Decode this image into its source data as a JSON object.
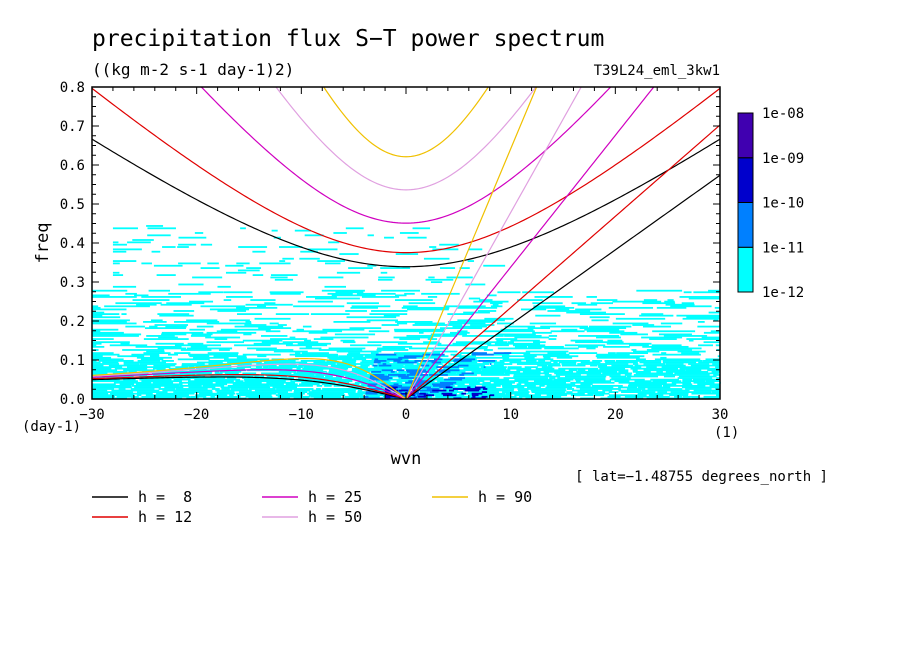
{
  "chart_data": {
    "type": "heatmap",
    "title": "precipitation flux S−T power spectrum",
    "subtitle": "((kg m-2 s-1 day-1)2)",
    "run_label": "T39L24_eml_3kw1",
    "xlabel": "wvn",
    "ylabel": "freq",
    "x_unit_label": "(1)",
    "y_unit_label": "(day-1)",
    "latitude_note": "[ lat=−1.48755 degrees_north ]",
    "xlim": [
      -30,
      30
    ],
    "ylim": [
      0,
      0.8
    ],
    "x_ticks": [
      -30,
      -20,
      -10,
      0,
      10,
      20,
      30
    ],
    "x_tick_labels": [
      "−30",
      "−20",
      "−10",
      "0",
      "10",
      "20",
      "30"
    ],
    "y_ticks": [
      0,
      0.1,
      0.2,
      0.3,
      0.4,
      0.5,
      0.6,
      0.7,
      0.8
    ],
    "y_tick_labels": [
      "0.0",
      "0.1",
      "0.2",
      "0.3",
      "0.4",
      "0.5",
      "0.6",
      "0.7",
      "0.8"
    ],
    "colorbar": {
      "levels": [
        "1e-12",
        "1e-11",
        "1e-10",
        "1e-09",
        "1e-08"
      ],
      "colors": [
        "#00ffff",
        "#0080ff",
        "#0000cc",
        "#4000b0"
      ]
    },
    "heatmap_regions": [
      {
        "level": "1e-12 to 1e-11",
        "color": "#00ffff",
        "x_range": [
          -30,
          30
        ],
        "freq_range": [
          0,
          0.28
        ],
        "note": "scattered horizontal streaks, densest below 0.25"
      },
      {
        "level": "1e-12 to 1e-11",
        "color": "#00ffff",
        "x_range": [
          -28,
          8
        ],
        "freq_range": [
          0.3,
          0.44
        ],
        "note": "sparse streaks"
      },
      {
        "level": "1e-11 to 1e-10",
        "color": "#0080ff",
        "x_range": [
          -5,
          10
        ],
        "freq_range": [
          0,
          0.12
        ],
        "note": "wedge near origin and eastward"
      },
      {
        "level": "1e-10 to 1e-09",
        "color": "#0000cc",
        "x_range": [
          -2,
          8
        ],
        "freq_range": [
          0,
          0.03
        ]
      }
    ],
    "dispersion_curves": {
      "equivalent_depths": [
        8,
        12,
        25,
        50,
        90
      ],
      "series": [
        {
          "name": "h =  8",
          "h": 8,
          "color": "#000000"
        },
        {
          "name": "h = 12",
          "h": 12,
          "color": "#e00000"
        },
        {
          "name": "h = 25",
          "h": 25,
          "color": "#d000c0"
        },
        {
          "name": "h = 50",
          "h": 50,
          "color": "#e0a0e0"
        },
        {
          "name": "h = 90",
          "h": 90,
          "color": "#f0c000"
        }
      ],
      "families": [
        "n=1 equatorial Rossby (westward, low)",
        "n=1 inertio-gravity (upper parabola)",
        "mixed Rossby-gravity (eastward ray)",
        "Kelvin (eastward ray)"
      ]
    },
    "legend": {
      "placement": "bottom-left",
      "entries": [
        "h =  8",
        "h = 12",
        "h = 25",
        "h = 50",
        "h = 90"
      ]
    },
    "grid": false
  }
}
